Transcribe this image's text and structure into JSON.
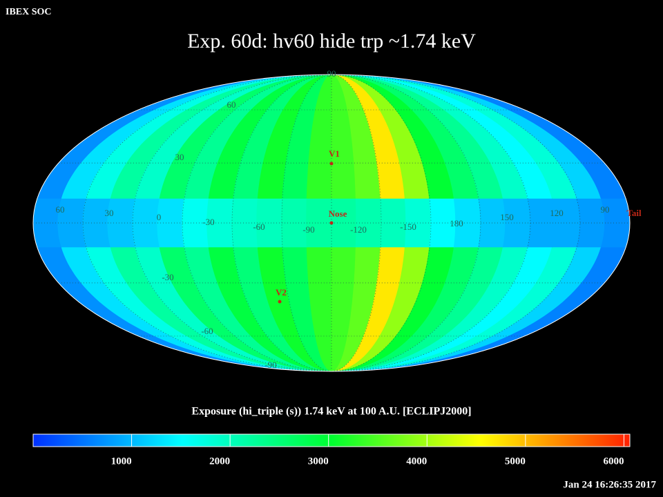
{
  "header": "IBEX SOC",
  "chart_data": {
    "type": "sky-map",
    "title": "Exp.   60d: hv60 hide trp ~1.74 keV",
    "colorbar_label": "Exposure (hi_triple (s))  1.74 keV at 100 A.U. [ECLIPJ2000]",
    "colormap": [
      "#0030ff",
      "#00ffff",
      "#00ff30",
      "#ffff00",
      "#ff2000"
    ],
    "clim": [
      0,
      6060
    ],
    "cticks": [
      1000,
      2000,
      3000,
      4000,
      5000,
      6000
    ],
    "meridian_values": [
      700,
      1300,
      1700,
      2200,
      1900,
      2600,
      2300,
      2900,
      2500,
      3100,
      2700,
      3300,
      3400,
      3600,
      4700,
      3900,
      3000,
      2600,
      2300,
      1900,
      1500,
      1800,
      1200,
      600
    ],
    "equator_values": [
      800,
      900,
      1000,
      1100,
      1200,
      1300,
      1600,
      1800,
      1900,
      2000,
      2100,
      2200,
      2200,
      2100,
      2000,
      1800,
      1500,
      1300,
      1100,
      1000,
      900,
      900,
      800,
      700
    ],
    "lon_labels": [
      "60",
      "30",
      "0",
      "-30",
      "-60",
      "-90",
      "-120",
      "-150",
      "180",
      "150",
      "120",
      "90"
    ],
    "lat_labels": [
      "90",
      "60",
      "30",
      "-30",
      "-60",
      "-90"
    ],
    "markers": [
      "V1",
      "Nose",
      "V2",
      "Tail"
    ]
  },
  "timestamp": "Jan 24 16:26:35 2017"
}
